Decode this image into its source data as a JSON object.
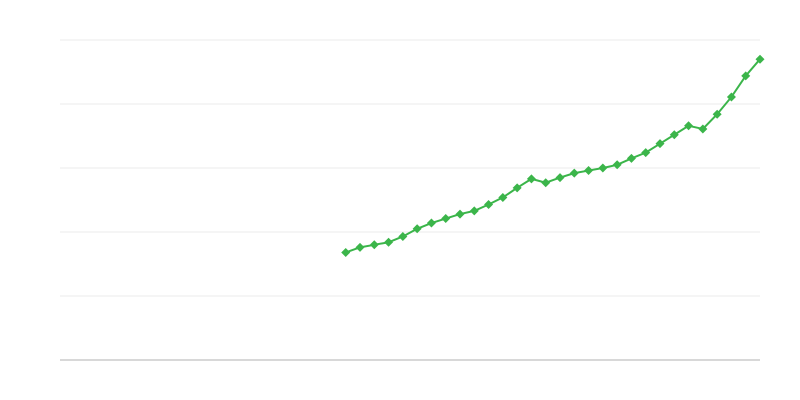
{
  "chart_data": {
    "type": "line",
    "title": "",
    "xlabel": "",
    "ylabel": "",
    "xlim": [
      0,
      49
    ],
    "ylim": [
      0,
      5
    ],
    "grid": true,
    "legend": "none",
    "colors": {
      "series": "#3bb54a",
      "grid": "#ebebeb",
      "axis": "#b0b0b0"
    },
    "marker": "diamond",
    "series": [
      {
        "x": [
          20,
          21,
          22,
          23,
          24,
          25,
          26,
          27,
          28,
          29,
          30,
          31,
          32,
          33,
          34,
          35,
          36,
          37,
          38,
          39,
          40,
          41,
          42,
          43,
          44,
          45,
          46,
          47,
          48,
          49
        ],
        "values": [
          1.68,
          1.76,
          1.8,
          1.84,
          1.93,
          2.05,
          2.14,
          2.21,
          2.28,
          2.33,
          2.43,
          2.54,
          2.69,
          2.83,
          2.77,
          2.85,
          2.92,
          2.96,
          3.0,
          3.05,
          3.15,
          3.24,
          3.38,
          3.52,
          3.66,
          3.61,
          3.84,
          4.11,
          4.44,
          4.7
        ]
      }
    ]
  }
}
